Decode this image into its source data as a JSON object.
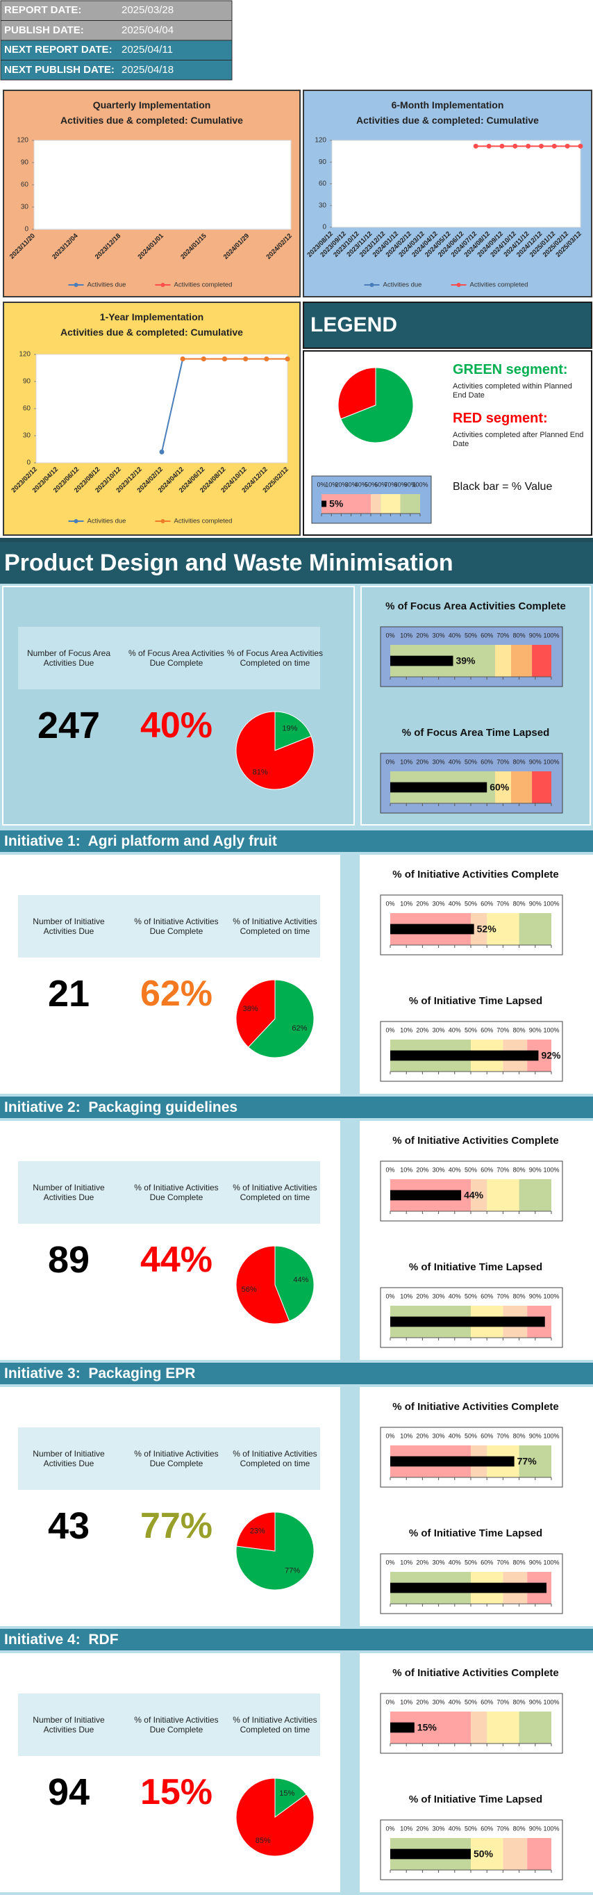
{
  "header": {
    "rows": [
      {
        "label": "REPORT DATE:",
        "value": "2025/03/28"
      },
      {
        "label": "PUBLISH DATE:",
        "value": "2025/04/04"
      },
      {
        "label": "NEXT REPORT DATE:",
        "value": "2025/04/11"
      },
      {
        "label": "NEXT PUBLISH DATE:",
        "value": "2025/04/18"
      }
    ]
  },
  "chart_data": [
    {
      "type": "line",
      "title": "Quarterly Implementation",
      "subtitle": "Activities due & completed: Cumulative",
      "categories": [
        "2023/11/20",
        "2023/12/04",
        "2023/12/18",
        "2024/01/01",
        "2024/01/15",
        "2024/01/29",
        "2024/02/12"
      ],
      "ylim": [
        0,
        120
      ],
      "yticks": [
        0,
        30,
        60,
        90,
        120
      ],
      "series": [
        {
          "name": "Activities due",
          "color": "#4a7ebb",
          "values": [
            null,
            null,
            null,
            null,
            null,
            null,
            null
          ]
        },
        {
          "name": "Activities completed",
          "color": "#ff4d4d",
          "values": [
            null,
            null,
            null,
            null,
            null,
            null,
            null
          ]
        }
      ]
    },
    {
      "type": "line",
      "title": "6-Month Implementation",
      "subtitle": "Activities due & completed: Cumulative",
      "categories": [
        "2023/08/12",
        "2023/09/12",
        "2023/10/12",
        "2023/11/12",
        "2023/12/12",
        "2024/01/12",
        "2024/02/12",
        "2024/03/12",
        "2024/04/12",
        "2024/05/12",
        "2024/06/12",
        "2024/07/12",
        "2024/08/12",
        "2024/09/12",
        "2024/10/12",
        "2024/11/12",
        "2024/12/12",
        "2025/01/12",
        "2025/02/12",
        "2025/03/12"
      ],
      "ylim": [
        0,
        120
      ],
      "yticks": [
        0,
        30,
        60,
        90,
        120
      ],
      "series": [
        {
          "name": "Activities due",
          "color": "#4a7ebb",
          "values": [
            null,
            null,
            null,
            null,
            null,
            null,
            null,
            null,
            null,
            null,
            null,
            null,
            null,
            null,
            null,
            null,
            null,
            null,
            null,
            null
          ]
        },
        {
          "name": "Activities completed",
          "color": "#ff4d4d",
          "values": [
            null,
            null,
            null,
            null,
            null,
            null,
            null,
            null,
            null,
            null,
            null,
            112,
            112,
            112,
            112,
            112,
            112,
            112,
            112,
            112
          ]
        }
      ]
    },
    {
      "type": "line",
      "title": "1-Year Implementation",
      "subtitle": "Activities due & completed: Cumulative",
      "categories": [
        "2023/02/12",
        "2023/04/12",
        "2023/06/12",
        "2023/08/12",
        "2023/10/12",
        "2023/12/12",
        "2024/02/12",
        "2024/04/12",
        "2024/06/12",
        "2024/08/12",
        "2024/10/12",
        "2024/12/12",
        "2025/02/12"
      ],
      "ylim": [
        0,
        120
      ],
      "yticks": [
        0,
        30,
        60,
        90,
        120
      ],
      "series": [
        {
          "name": "Activities due",
          "color": "#4a7ebb",
          "values": [
            null,
            null,
            null,
            null,
            null,
            null,
            12,
            115,
            115,
            115,
            115,
            115,
            115
          ]
        },
        {
          "name": "Activities completed",
          "color": "#f07a2a",
          "values": [
            null,
            null,
            null,
            null,
            null,
            null,
            null,
            115,
            115,
            115,
            115,
            115,
            115
          ]
        }
      ]
    }
  ],
  "legend": {
    "title": "LEGEND",
    "pie": {
      "type": "pie",
      "values": [
        69,
        31
      ]
    },
    "green_title": "GREEN segment:",
    "green_text": "Activities completed within Planned End Date",
    "red_title": "RED segment:",
    "red_text": "Activities completed after Planned End Date",
    "gauge": {
      "value": 5,
      "value_label": "5%",
      "bands": "complete"
    },
    "gauge_text": "Black bar = % Value"
  },
  "pie_colors": [
    "#00b050",
    "#ff0000"
  ],
  "gauge_xlim": [
    0,
    100
  ],
  "percent_ticks": [
    {
      "value": 0,
      "label": "0%"
    },
    {
      "value": 10,
      "label": "10%"
    },
    {
      "value": 20,
      "label": "20%"
    },
    {
      "value": 30,
      "label": "30%"
    },
    {
      "value": 40,
      "label": "40%"
    },
    {
      "value": 50,
      "label": "50%"
    },
    {
      "value": 60,
      "label": "60%"
    },
    {
      "value": 70,
      "label": "70%"
    },
    {
      "value": 80,
      "label": "80%"
    },
    {
      "value": 90,
      "label": "90%"
    },
    {
      "value": 100,
      "label": "100%"
    }
  ],
  "band_sets": {
    "focus": [
      {
        "from": 0,
        "to": 65,
        "color": "#c3d69b"
      },
      {
        "from": 65,
        "to": 75,
        "color": "#ffe699"
      },
      {
        "from": 75,
        "to": 88,
        "color": "#fab470"
      },
      {
        "from": 88,
        "to": 100,
        "color": "#ff5050"
      }
    ],
    "complete": [
      {
        "from": 0,
        "to": 50,
        "color": "#ffa3a3"
      },
      {
        "from": 50,
        "to": 60,
        "color": "#fcd5b4"
      },
      {
        "from": 60,
        "to": 80,
        "color": "#fff2a8"
      },
      {
        "from": 80,
        "to": 100,
        "color": "#c3d69b"
      }
    ],
    "lapsed": [
      {
        "from": 0,
        "to": 50,
        "color": "#c3d69b"
      },
      {
        "from": 50,
        "to": 70,
        "color": "#fff2a8"
      },
      {
        "from": 70,
        "to": 85,
        "color": "#fcd5b4"
      },
      {
        "from": 85,
        "to": 100,
        "color": "#ffa3a3"
      }
    ]
  },
  "sections": [
    {
      "title": "Product Design and Waste Minimisation",
      "labels": [
        "Number of Focus Area Activities Due",
        "% of Focus Area Activities Due Complete",
        "% of Focus Area Activities Completed on time"
      ],
      "count": "247",
      "percent": "40%",
      "percent_color": "#ff0000",
      "panel_color": "#8eaadb",
      "pie": {
        "type": "pie",
        "values": [
          19,
          81
        ],
        "value_labels": [
          "19%",
          "81%"
        ]
      },
      "gauges": [
        {
          "title": "% of Focus Area Activities Complete",
          "value": 39,
          "value_label": "39%",
          "bands": "focus"
        },
        {
          "title": "% of Focus Area Time Lapsed",
          "value": 60,
          "value_label": "60%",
          "bands": "focus"
        }
      ]
    },
    {
      "title": "Initiative 1:  Agri platform and Agly fruit",
      "labels": [
        "Number of Initiative Activities Due",
        "% of Initiative Activities Due Complete",
        "% of Initiative Activities Completed on time"
      ],
      "count": "21",
      "percent": "62%",
      "percent_color": "#f47920",
      "panel_color": "#ffffff",
      "pie": {
        "type": "pie",
        "values": [
          62,
          38
        ],
        "value_labels": [
          "62%",
          "38%"
        ]
      },
      "gauges": [
        {
          "title": "% of Initiative Activities Complete",
          "value": 52,
          "value_label": "52%",
          "bands": "complete"
        },
        {
          "title": "% of Initiative Time Lapsed",
          "value": 92,
          "value_label": "92%",
          "bands": "lapsed"
        }
      ]
    },
    {
      "title": "Initiative 2:  Packaging guidelines",
      "labels": [
        "Number of Initiative Activities Due",
        "% of Initiative Activities Due Complete",
        "% of Initiative Activities Completed on time"
      ],
      "count": "89",
      "percent": "44%",
      "percent_color": "#ff0000",
      "panel_color": "#ffffff",
      "pie": {
        "type": "pie",
        "values": [
          44,
          56
        ],
        "value_labels": [
          "44%",
          "56%"
        ]
      },
      "gauges": [
        {
          "title": "% of Initiative Activities Complete",
          "value": 44,
          "value_label": "44%",
          "bands": "complete"
        },
        {
          "title": "% of Initiative Time Lapsed",
          "value": 96,
          "bands": "lapsed"
        }
      ]
    },
    {
      "title": "Initiative 3:  Packaging EPR",
      "labels": [
        "Number of Initiative Activities Due",
        "% of Initiative Activities Due Complete",
        "% of Initiative Activities Completed on time"
      ],
      "count": "43",
      "percent": "77%",
      "percent_color": "#99a02a",
      "panel_color": "#ffffff",
      "pie": {
        "type": "pie",
        "values": [
          77,
          23
        ],
        "value_labels": [
          "77%",
          "23%"
        ]
      },
      "gauges": [
        {
          "title": "% of Initiative Activities Complete",
          "value": 77,
          "value_label": "77%",
          "bands": "complete"
        },
        {
          "title": "% of Initiative Time Lapsed",
          "value": 97,
          "bands": "lapsed"
        }
      ]
    },
    {
      "title": "Initiative 4:  RDF",
      "labels": [
        "Number of Initiative Activities Due",
        "% of Initiative Activities Due Complete",
        "% of Initiative Activities Completed on time"
      ],
      "count": "94",
      "percent": "15%",
      "percent_color": "#ff0000",
      "panel_color": "#ffffff",
      "pie": {
        "type": "pie",
        "values": [
          15,
          85
        ],
        "value_labels": [
          "15%",
          "85%"
        ]
      },
      "gauges": [
        {
          "title": "% of Initiative Activities Complete",
          "value": 15,
          "value_label": "15%",
          "bands": "complete"
        },
        {
          "title": "% of Initiative Time Lapsed",
          "value": 50,
          "value_label": "50%",
          "bands": "lapsed"
        }
      ]
    }
  ]
}
